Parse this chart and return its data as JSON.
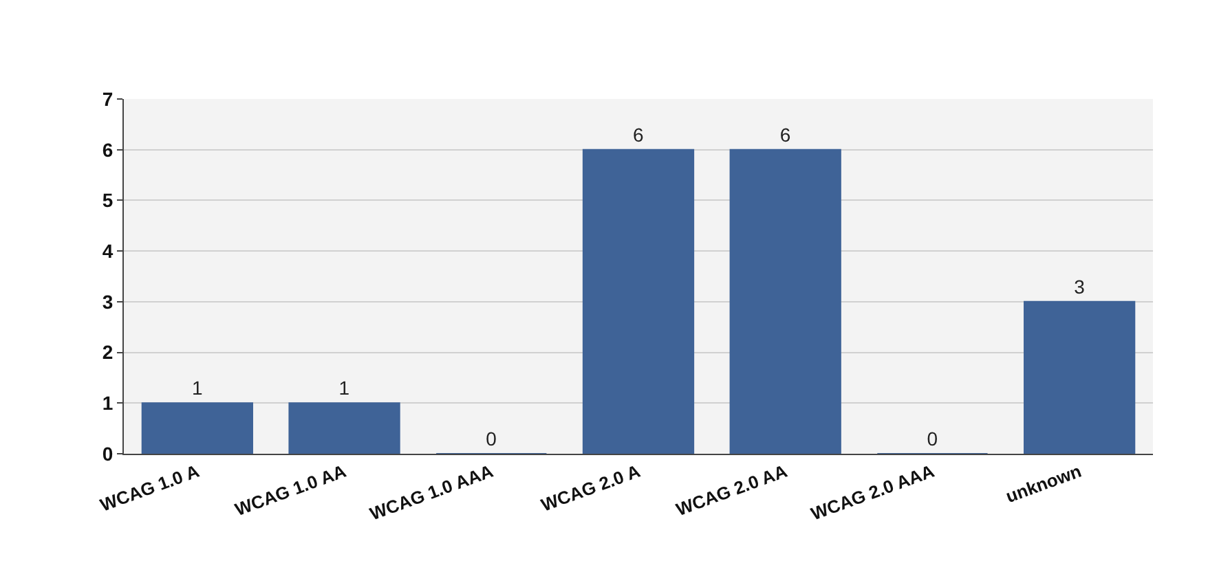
{
  "chart_data": {
    "type": "bar",
    "categories": [
      "WCAG 1.0 A",
      "WCAG 1.0 AA",
      "WCAG 1.0 AAA",
      "WCAG 2.0 A",
      "WCAG 2.0 AA",
      "WCAG 2.0 AAA",
      "unknown"
    ],
    "values": [
      1,
      1,
      0,
      6,
      6,
      0,
      3
    ],
    "color": "#3f6397",
    "ylim": [
      0,
      7
    ],
    "yticks": [
      0,
      1,
      2,
      3,
      4,
      5,
      6,
      7
    ],
    "grid": "y",
    "data_labels": true
  }
}
